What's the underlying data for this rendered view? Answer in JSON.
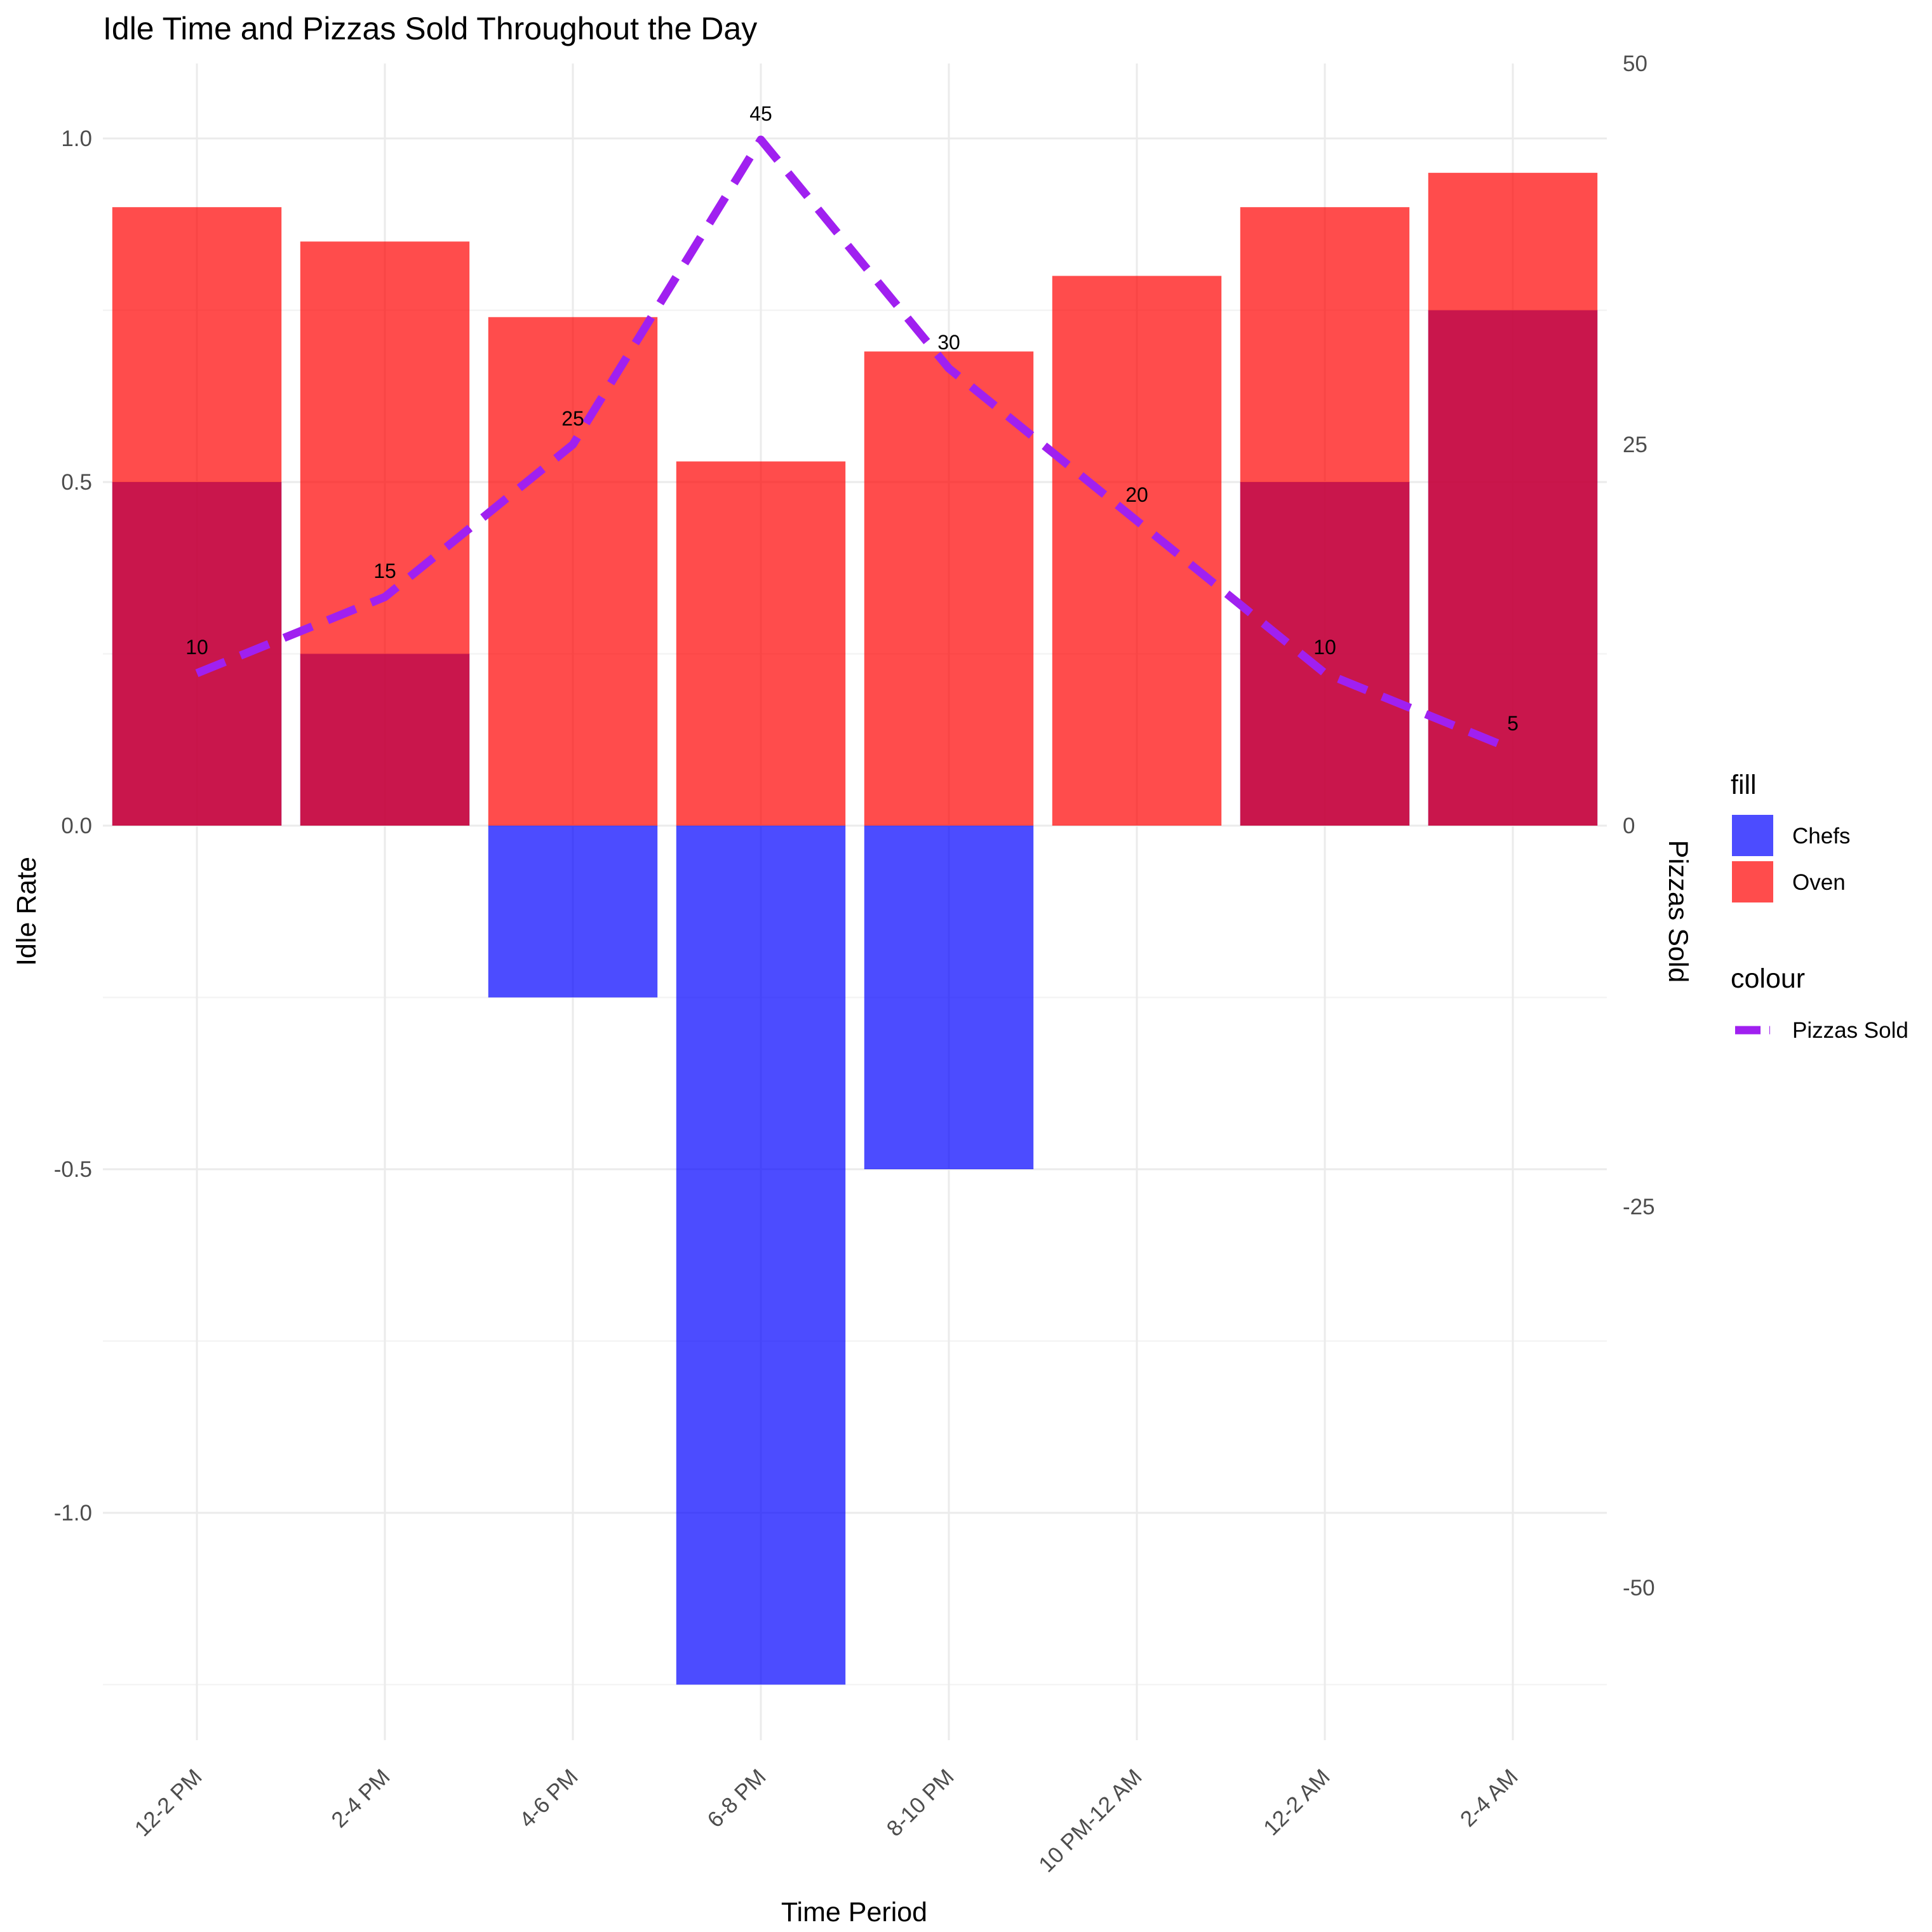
{
  "chart_data": {
    "type": "bar",
    "title": "Idle Time and Pizzas Sold Throughout the Day",
    "xlabel": "Time Period",
    "ylabel": "Idle Rate",
    "y2label": "Pizzas Sold",
    "categories": [
      "12-2 PM",
      "2-4 PM",
      "4-6 PM",
      "6-8 PM",
      "8-10 PM",
      "10 PM-12 AM",
      "12-2 AM",
      "2-4 AM"
    ],
    "ylim": [
      -1.25,
      1.1
    ],
    "y2lim": [
      -62.5,
      55
    ],
    "yticks": [
      {
        "value": 1.0,
        "label": "1.0"
      },
      {
        "value": 0.5,
        "label": "0.5"
      },
      {
        "value": 0.0,
        "label": "0.0"
      },
      {
        "value": -0.5,
        "label": "-0.5"
      },
      {
        "value": -1.0,
        "label": "-1.0"
      }
    ],
    "y2ticks": [
      {
        "value": 50,
        "label": "50"
      },
      {
        "value": 25,
        "label": "25"
      },
      {
        "value": 0,
        "label": "0"
      },
      {
        "value": -25,
        "label": "-25"
      },
      {
        "value": -50,
        "label": "-50"
      }
    ],
    "grid": true,
    "series": [
      {
        "name": "Chefs",
        "kind": "bar",
        "color": "#0000FF",
        "opacity": 0.7,
        "values": [
          0.5,
          0.25,
          -0.25,
          -1.25,
          -0.5,
          0.0,
          0.5,
          0.75
        ]
      },
      {
        "name": "Oven",
        "kind": "bar",
        "color": "#FF0000",
        "opacity": 0.7,
        "values": [
          0.9,
          0.85,
          0.74,
          0.53,
          0.69,
          0.8,
          0.9,
          0.95
        ]
      },
      {
        "name": "Pizzas Sold",
        "kind": "line",
        "axis": "secondary",
        "color": "#A020F0",
        "style": "dashed",
        "values": [
          10,
          15,
          25,
          45,
          30,
          20,
          10,
          5
        ],
        "labels": [
          "10",
          "15",
          "25",
          "45",
          "30",
          "20",
          "10",
          "5"
        ]
      }
    ],
    "legend": {
      "position": "right",
      "fill_title": "fill",
      "fill_items": [
        "Chefs",
        "Oven"
      ],
      "colour_title": "colour",
      "colour_items": [
        "Pizzas Sold"
      ]
    }
  }
}
